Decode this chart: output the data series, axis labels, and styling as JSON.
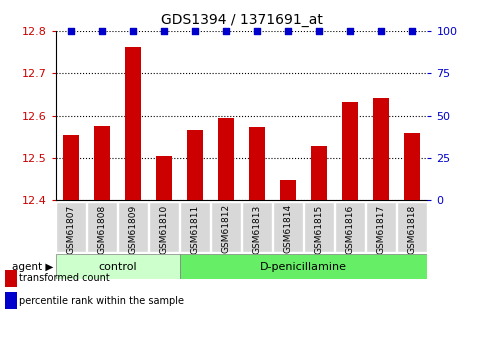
{
  "title": "GDS1394 / 1371691_at",
  "samples": [
    "GSM61807",
    "GSM61808",
    "GSM61809",
    "GSM61810",
    "GSM61811",
    "GSM61812",
    "GSM61813",
    "GSM61814",
    "GSM61815",
    "GSM61816",
    "GSM61817",
    "GSM61818"
  ],
  "bar_values": [
    12.555,
    12.575,
    12.762,
    12.505,
    12.565,
    12.595,
    12.572,
    12.448,
    12.527,
    12.632,
    12.642,
    12.558
  ],
  "percentile_values": [
    100,
    100,
    100,
    100,
    100,
    100,
    100,
    100,
    100,
    100,
    100,
    100
  ],
  "bar_color": "#cc0000",
  "percentile_color": "#0000cc",
  "ylim_left": [
    12.4,
    12.8
  ],
  "ylim_right": [
    0,
    100
  ],
  "yticks_left": [
    12.4,
    12.5,
    12.6,
    12.7,
    12.8
  ],
  "yticks_right": [
    0,
    25,
    50,
    75,
    100
  ],
  "groups": [
    {
      "label": "control",
      "start": 0,
      "end": 4
    },
    {
      "label": "D-penicillamine",
      "start": 4,
      "end": 12
    }
  ],
  "group_color_light": "#ccffcc",
  "group_color_bright": "#66ee66",
  "agent_label": "agent",
  "legend_items": [
    {
      "color": "#cc0000",
      "label": "transformed count"
    },
    {
      "color": "#0000cc",
      "label": "percentile rank within the sample"
    }
  ],
  "background_color": "#ffffff",
  "tick_label_color_left": "#cc0000",
  "tick_label_color_right": "#0000cc",
  "bar_width": 0.5,
  "title_fontsize": 10,
  "tick_fontsize": 8,
  "label_fontsize": 8,
  "sample_box_color": "#d8d8d8",
  "n_samples": 12,
  "n_control": 4
}
